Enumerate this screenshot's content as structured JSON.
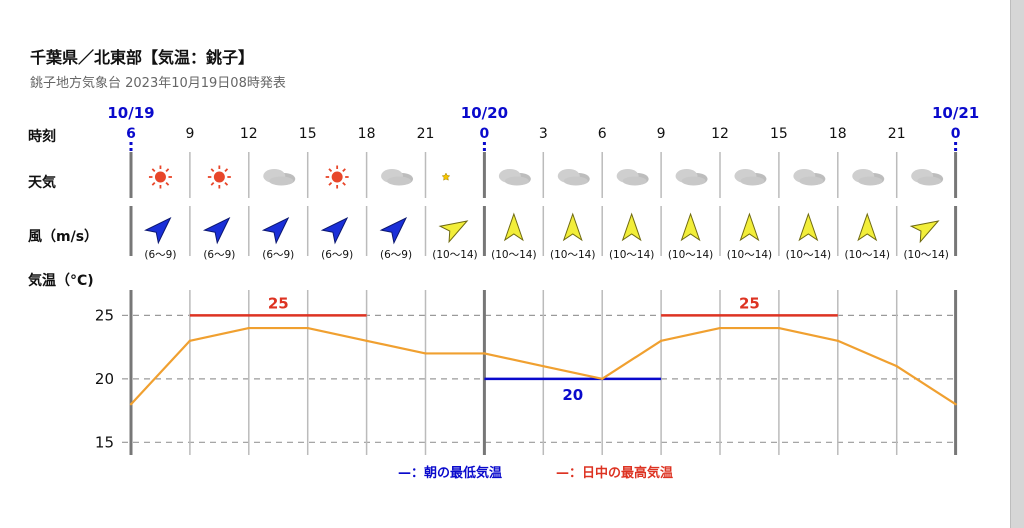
{
  "header": {
    "title": "千葉県／北東部【気温：銚子】",
    "subtitle": "銚子地方気象台 2023年10月19日08時発表"
  },
  "rows": {
    "time_label": "時刻",
    "weather_label": "天気",
    "wind_label": "風（m/s）",
    "temp_label": "気温（°C)"
  },
  "dates": [
    "10/19",
    "10/20",
    "10/21"
  ],
  "hour_labels": [
    "6",
    "9",
    "12",
    "15",
    "18",
    "21",
    "0",
    "3",
    "6",
    "9",
    "12",
    "15",
    "18",
    "21",
    "0"
  ],
  "weather_icons": [
    "sun-icon",
    "sun-icon",
    "cloud-icon",
    "sun-icon",
    "cloud-icon",
    "moon-icon",
    "cloud-icon",
    "cloud-icon",
    "cloud-icon",
    "cloud-icon",
    "cloud-icon",
    "cloud-icon",
    "cloud-icon",
    "cloud-icon"
  ],
  "wind": {
    "speeds": [
      "(6〜9)",
      "(6〜9)",
      "(6〜9)",
      "(6〜9)",
      "(6〜9)",
      "(10〜14)",
      "(10〜14)",
      "(10〜14)",
      "(10〜14)",
      "(10〜14)",
      "(10〜14)",
      "(10〜14)",
      "(10〜14)",
      "(10〜14)"
    ],
    "arrow_styles": [
      "blue",
      "blue",
      "blue",
      "blue",
      "blue",
      "yellow",
      "yellow",
      "yellow",
      "yellow",
      "yellow",
      "yellow",
      "yellow",
      "yellow",
      "yellow"
    ],
    "directions_deg": [
      45,
      45,
      45,
      45,
      45,
      60,
      0,
      0,
      0,
      0,
      0,
      0,
      0,
      60
    ]
  },
  "legend": {
    "min": "—：朝の最低気温",
    "max": "—：日中の最高気温"
  },
  "colors": {
    "blue": "#0a0acc",
    "red": "#dd3322",
    "temp_line": "#f0a030",
    "sun": "#e8462a",
    "cloud": "#cfcfcf",
    "moon": "#f5c400",
    "arrow_blue": "#1a2fd8",
    "arrow_yellow": "#f2ee3a"
  },
  "chart_data": {
    "type": "line",
    "x": [
      "6",
      "9",
      "12",
      "15",
      "18",
      "21",
      "0",
      "3",
      "6",
      "9",
      "12",
      "15",
      "18",
      "21",
      "0"
    ],
    "series": [
      {
        "values": [
          18,
          23,
          24,
          24,
          23,
          22,
          22,
          21,
          20,
          23,
          24,
          24,
          23,
          21,
          18
        ]
      }
    ],
    "ylim": [
      14,
      27
    ],
    "yticks": [
      15,
      20,
      25
    ],
    "max_temp": [
      {
        "value": 25,
        "label": "25",
        "from": 1,
        "to": 4
      },
      {
        "value": 25,
        "label": "25",
        "from": 9,
        "to": 12
      }
    ],
    "min_temp": [
      {
        "value": 20,
        "label": "20",
        "from": 6,
        "to": 9
      }
    ],
    "grid": true
  }
}
